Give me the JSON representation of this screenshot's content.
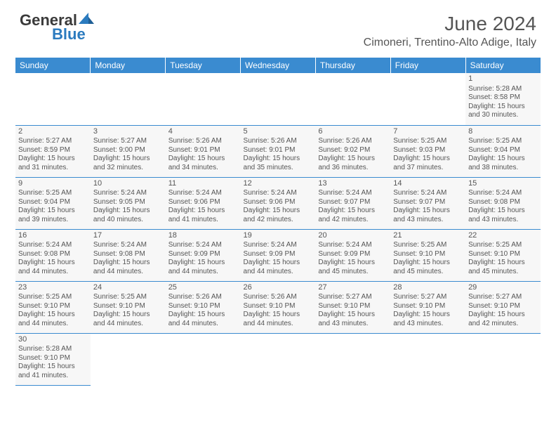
{
  "logo": {
    "text1": "General",
    "text2": "Blue"
  },
  "title": "June 2024",
  "location": "Cimoneri, Trentino-Alto Adige, Italy",
  "headers": [
    "Sunday",
    "Monday",
    "Tuesday",
    "Wednesday",
    "Thursday",
    "Friday",
    "Saturday"
  ],
  "colors": {
    "header_bg": "#3a8bd0",
    "header_text": "#ffffff",
    "cell_bg": "#f7f7f7",
    "border": "#3a8bd0",
    "text": "#555555",
    "logo_blue": "#2b7bbf"
  },
  "grid": [
    [
      {
        "empty": true
      },
      {
        "empty": true
      },
      {
        "empty": true
      },
      {
        "empty": true
      },
      {
        "empty": true
      },
      {
        "empty": true
      },
      {
        "day": "1",
        "sunrise": "Sunrise: 5:28 AM",
        "sunset": "Sunset: 8:58 PM",
        "d1": "Daylight: 15 hours",
        "d2": "and 30 minutes."
      }
    ],
    [
      {
        "day": "2",
        "sunrise": "Sunrise: 5:27 AM",
        "sunset": "Sunset: 8:59 PM",
        "d1": "Daylight: 15 hours",
        "d2": "and 31 minutes."
      },
      {
        "day": "3",
        "sunrise": "Sunrise: 5:27 AM",
        "sunset": "Sunset: 9:00 PM",
        "d1": "Daylight: 15 hours",
        "d2": "and 32 minutes."
      },
      {
        "day": "4",
        "sunrise": "Sunrise: 5:26 AM",
        "sunset": "Sunset: 9:01 PM",
        "d1": "Daylight: 15 hours",
        "d2": "and 34 minutes."
      },
      {
        "day": "5",
        "sunrise": "Sunrise: 5:26 AM",
        "sunset": "Sunset: 9:01 PM",
        "d1": "Daylight: 15 hours",
        "d2": "and 35 minutes."
      },
      {
        "day": "6",
        "sunrise": "Sunrise: 5:26 AM",
        "sunset": "Sunset: 9:02 PM",
        "d1": "Daylight: 15 hours",
        "d2": "and 36 minutes."
      },
      {
        "day": "7",
        "sunrise": "Sunrise: 5:25 AM",
        "sunset": "Sunset: 9:03 PM",
        "d1": "Daylight: 15 hours",
        "d2": "and 37 minutes."
      },
      {
        "day": "8",
        "sunrise": "Sunrise: 5:25 AM",
        "sunset": "Sunset: 9:04 PM",
        "d1": "Daylight: 15 hours",
        "d2": "and 38 minutes."
      }
    ],
    [
      {
        "day": "9",
        "sunrise": "Sunrise: 5:25 AM",
        "sunset": "Sunset: 9:04 PM",
        "d1": "Daylight: 15 hours",
        "d2": "and 39 minutes."
      },
      {
        "day": "10",
        "sunrise": "Sunrise: 5:24 AM",
        "sunset": "Sunset: 9:05 PM",
        "d1": "Daylight: 15 hours",
        "d2": "and 40 minutes."
      },
      {
        "day": "11",
        "sunrise": "Sunrise: 5:24 AM",
        "sunset": "Sunset: 9:06 PM",
        "d1": "Daylight: 15 hours",
        "d2": "and 41 minutes."
      },
      {
        "day": "12",
        "sunrise": "Sunrise: 5:24 AM",
        "sunset": "Sunset: 9:06 PM",
        "d1": "Daylight: 15 hours",
        "d2": "and 42 minutes."
      },
      {
        "day": "13",
        "sunrise": "Sunrise: 5:24 AM",
        "sunset": "Sunset: 9:07 PM",
        "d1": "Daylight: 15 hours",
        "d2": "and 42 minutes."
      },
      {
        "day": "14",
        "sunrise": "Sunrise: 5:24 AM",
        "sunset": "Sunset: 9:07 PM",
        "d1": "Daylight: 15 hours",
        "d2": "and 43 minutes."
      },
      {
        "day": "15",
        "sunrise": "Sunrise: 5:24 AM",
        "sunset": "Sunset: 9:08 PM",
        "d1": "Daylight: 15 hours",
        "d2": "and 43 minutes."
      }
    ],
    [
      {
        "day": "16",
        "sunrise": "Sunrise: 5:24 AM",
        "sunset": "Sunset: 9:08 PM",
        "d1": "Daylight: 15 hours",
        "d2": "and 44 minutes."
      },
      {
        "day": "17",
        "sunrise": "Sunrise: 5:24 AM",
        "sunset": "Sunset: 9:08 PM",
        "d1": "Daylight: 15 hours",
        "d2": "and 44 minutes."
      },
      {
        "day": "18",
        "sunrise": "Sunrise: 5:24 AM",
        "sunset": "Sunset: 9:09 PM",
        "d1": "Daylight: 15 hours",
        "d2": "and 44 minutes."
      },
      {
        "day": "19",
        "sunrise": "Sunrise: 5:24 AM",
        "sunset": "Sunset: 9:09 PM",
        "d1": "Daylight: 15 hours",
        "d2": "and 44 minutes."
      },
      {
        "day": "20",
        "sunrise": "Sunrise: 5:24 AM",
        "sunset": "Sunset: 9:09 PM",
        "d1": "Daylight: 15 hours",
        "d2": "and 45 minutes."
      },
      {
        "day": "21",
        "sunrise": "Sunrise: 5:25 AM",
        "sunset": "Sunset: 9:10 PM",
        "d1": "Daylight: 15 hours",
        "d2": "and 45 minutes."
      },
      {
        "day": "22",
        "sunrise": "Sunrise: 5:25 AM",
        "sunset": "Sunset: 9:10 PM",
        "d1": "Daylight: 15 hours",
        "d2": "and 45 minutes."
      }
    ],
    [
      {
        "day": "23",
        "sunrise": "Sunrise: 5:25 AM",
        "sunset": "Sunset: 9:10 PM",
        "d1": "Daylight: 15 hours",
        "d2": "and 44 minutes."
      },
      {
        "day": "24",
        "sunrise": "Sunrise: 5:25 AM",
        "sunset": "Sunset: 9:10 PM",
        "d1": "Daylight: 15 hours",
        "d2": "and 44 minutes."
      },
      {
        "day": "25",
        "sunrise": "Sunrise: 5:26 AM",
        "sunset": "Sunset: 9:10 PM",
        "d1": "Daylight: 15 hours",
        "d2": "and 44 minutes."
      },
      {
        "day": "26",
        "sunrise": "Sunrise: 5:26 AM",
        "sunset": "Sunset: 9:10 PM",
        "d1": "Daylight: 15 hours",
        "d2": "and 44 minutes."
      },
      {
        "day": "27",
        "sunrise": "Sunrise: 5:27 AM",
        "sunset": "Sunset: 9:10 PM",
        "d1": "Daylight: 15 hours",
        "d2": "and 43 minutes."
      },
      {
        "day": "28",
        "sunrise": "Sunrise: 5:27 AM",
        "sunset": "Sunset: 9:10 PM",
        "d1": "Daylight: 15 hours",
        "d2": "and 43 minutes."
      },
      {
        "day": "29",
        "sunrise": "Sunrise: 5:27 AM",
        "sunset": "Sunset: 9:10 PM",
        "d1": "Daylight: 15 hours",
        "d2": "and 42 minutes."
      }
    ],
    [
      {
        "day": "30",
        "sunrise": "Sunrise: 5:28 AM",
        "sunset": "Sunset: 9:10 PM",
        "d1": "Daylight: 15 hours",
        "d2": "and 41 minutes."
      },
      {
        "empty": true
      },
      {
        "empty": true
      },
      {
        "empty": true
      },
      {
        "empty": true
      },
      {
        "empty": true
      },
      {
        "empty": true
      }
    ]
  ]
}
